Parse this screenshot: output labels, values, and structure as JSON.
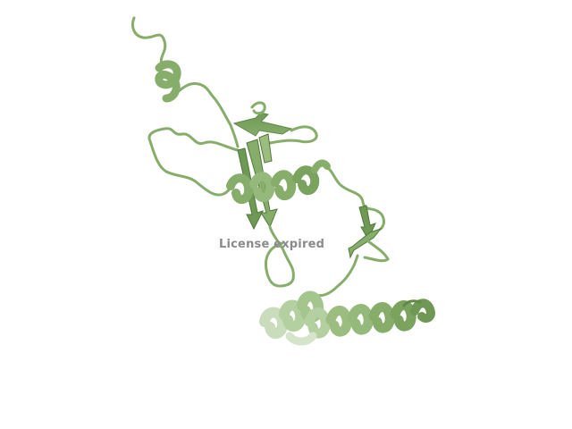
{
  "watermark": {
    "text": "License expired"
  },
  "colors": {
    "background": "#ffffff",
    "ribbon": "#86ad6a",
    "ribbon_dark": "#5f8a47",
    "ribbon_light": "#b4cfa0",
    "watermark": "#8a8a8a"
  }
}
